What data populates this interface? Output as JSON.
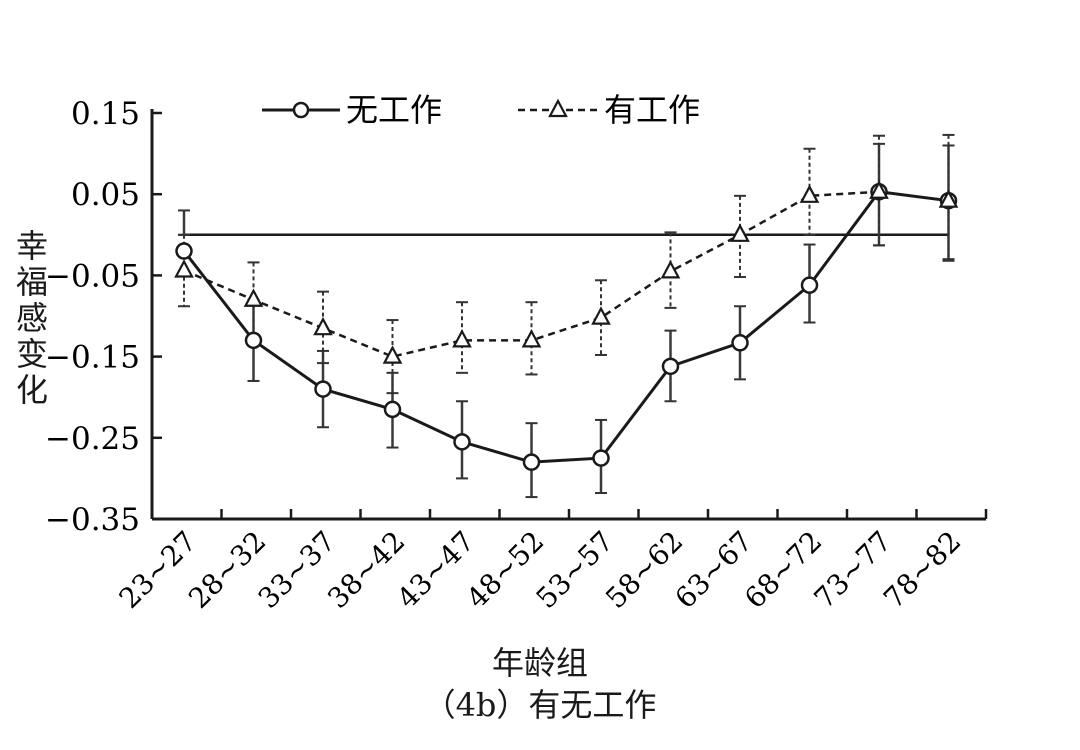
{
  "chart_data": {
    "type": "line",
    "categories": [
      "23~27",
      "28~32",
      "33~37",
      "38~42",
      "43~47",
      "48~52",
      "53~57",
      "58~62",
      "63~67",
      "68~72",
      "73~77",
      "78~82"
    ],
    "ylim": [
      -0.35,
      0.15
    ],
    "yticks": [
      "0.15",
      "0.05",
      "−0.05",
      "−0.15",
      "−0.25",
      "−0.35"
    ],
    "ytick_values": [
      0.15,
      0.05,
      -0.05,
      -0.15,
      -0.25,
      -0.35
    ],
    "reference_line": 0,
    "xlabel": "年龄组",
    "ylabel": [
      "幸",
      "福",
      "感",
      "变",
      "化"
    ],
    "caption": "（4b）有无工作",
    "legend_position": "top",
    "series": [
      {
        "name": "无工作",
        "marker": "circle",
        "line": "solid",
        "values": [
          -0.02,
          -0.13,
          -0.19,
          -0.215,
          -0.255,
          -0.28,
          -0.275,
          -0.162,
          -0.133,
          -0.062,
          0.053,
          0.042
        ],
        "error_low": [
          0.0,
          -0.18,
          -0.237,
          -0.262,
          -0.3,
          -0.323,
          -0.318,
          -0.205,
          -0.178,
          -0.108,
          -0.013,
          -0.03
        ],
        "error_high": [
          0.03,
          -0.08,
          -0.143,
          -0.17,
          -0.205,
          -0.232,
          -0.228,
          -0.118,
          -0.088,
          -0.012,
          0.112,
          0.11
        ]
      },
      {
        "name": "有工作",
        "marker": "triangle",
        "line": "dashed",
        "values": [
          -0.044,
          -0.08,
          -0.115,
          -0.15,
          -0.13,
          -0.13,
          -0.102,
          -0.045,
          0.0,
          0.048,
          0.053,
          0.042
        ],
        "error_low": [
          -0.088,
          -0.125,
          -0.158,
          -0.195,
          -0.17,
          -0.172,
          -0.148,
          -0.09,
          -0.052,
          0.0,
          -0.013,
          -0.032
        ],
        "error_high": [
          0.0,
          -0.034,
          -0.07,
          -0.105,
          -0.083,
          -0.083,
          -0.056,
          0.003,
          0.048,
          0.106,
          0.122,
          0.123
        ]
      }
    ]
  }
}
